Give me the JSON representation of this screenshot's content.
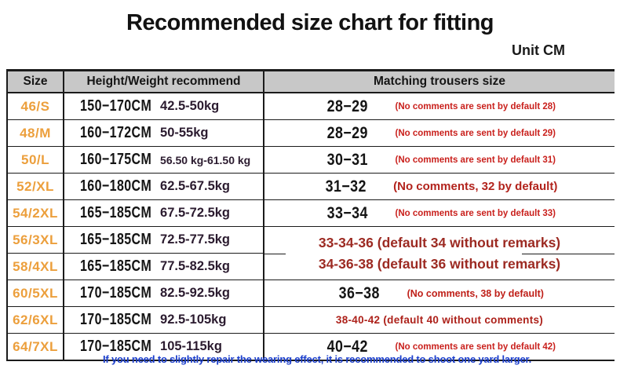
{
  "title": "Recommended size chart for fitting",
  "unit_label": "Unit CM",
  "colors": {
    "size_accent": "#EC9F3C",
    "weight_text": "#2B1B2F",
    "comment_red": "#C9201C",
    "merged_red": "#9C2A22",
    "footer_blue": "#1B3ECC",
    "header_bg": "#C8C8C8",
    "border": "#1B1B1B"
  },
  "table": {
    "headers": {
      "size": "Size",
      "height_weight": "Height/Weight recommend",
      "trousers": "Matching trousers size"
    },
    "rows": [
      {
        "size": "46/S",
        "height": "150−170CM",
        "weight": "42.5-50kg",
        "trousers": "28−29",
        "comment": "(No comments are sent by default 28)"
      },
      {
        "size": "48/M",
        "height": "160−172CM",
        "weight": "50-55kg",
        "trousers": "28−29",
        "comment": "(No comments are sent by default 29)"
      },
      {
        "size": "50/L",
        "height": "160−175CM",
        "weight": "56.50 kg-61.50 kg",
        "trousers": "30−31",
        "comment": "(No comments are sent by default 31)"
      },
      {
        "size": "52/XL",
        "height": "160−180CM",
        "weight": "62.5-67.5kg",
        "trousers": "31−32",
        "comment": "(No comments, 32 by default)"
      },
      {
        "size": "54/2XL",
        "height": "165−185CM",
        "weight": "67.5-72.5kg",
        "trousers": "33−34",
        "comment": "(No comments are sent by default 33)"
      },
      {
        "size": "56/3XL",
        "height": "165−185CM",
        "weight": "72.5-77.5kg",
        "merged_comment": "33-34-36 (default 34 without remarks) 34-36-38 (default 36 without remarks)"
      },
      {
        "size": "58/4XL",
        "height": "165−185CM",
        "weight": "77.5-82.5kg"
      },
      {
        "size": "60/5XL",
        "height": "170−185CM",
        "weight": "82.5-92.5kg",
        "trousers": "36−38",
        "comment": "(No comments, 38 by default)"
      },
      {
        "size": "62/6XL",
        "height": "170−185CM",
        "weight": "92.5-105kg",
        "full_comment": "38-40-42 (default 40 without comments)"
      },
      {
        "size": "64/7XL",
        "height": "170−185CM",
        "weight": "105-115kg",
        "trousers": "40−42",
        "comment": "(No comments are sent by default 42)"
      }
    ]
  },
  "footer_note": "If you need to slightly repair the wearing effect, it is recommended to shoot one yard larger."
}
